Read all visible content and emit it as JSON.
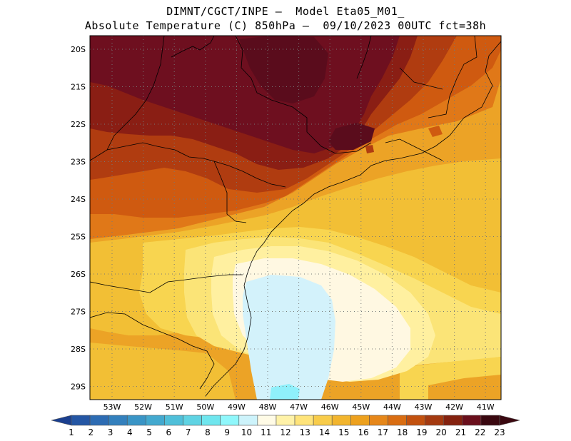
{
  "header": {
    "line1": "DIMNT/CGCT/INPE –  Model Eta05_M01_",
    "line2": "Absolute Temperature (C) 850hPa –  09/10/2023 00UTC fct=38h"
  },
  "axes": {
    "lat_ticks": [
      "20S",
      "21S",
      "22S",
      "23S",
      "24S",
      "25S",
      "26S",
      "27S",
      "28S",
      "29S"
    ],
    "lon_ticks": [
      "53W",
      "52W",
      "51W",
      "50W",
      "49W",
      "48W",
      "47W",
      "46W",
      "45W",
      "44W",
      "43W",
      "42W",
      "41W"
    ]
  },
  "colorbar": {
    "labels": [
      "1",
      "2",
      "3",
      "4",
      "5",
      "6",
      "7",
      "8",
      "9",
      "10",
      "11",
      "12",
      "13",
      "14",
      "15",
      "16",
      "17",
      "18",
      "19",
      "20",
      "21",
      "22",
      "23"
    ],
    "colors": [
      "#1a3f8f",
      "#2456a4",
      "#2d6cb3",
      "#3380bd",
      "#3a95c6",
      "#43a9cf",
      "#4fbfd9",
      "#5fd3e3",
      "#6fe6ee",
      "#8ff7fb",
      "#cdf3fb",
      "#fffbe6",
      "#fff2a8",
      "#ffe47a",
      "#f8cc4a",
      "#f2b52e",
      "#eda11e",
      "#e6871a",
      "#d96d12",
      "#c2510f",
      "#a43a10",
      "#84220f",
      "#6a0f1c",
      "#3a0810"
    ]
  },
  "map_colors": {
    "t23": "#5a0c1c",
    "t22": "#6e0f1f",
    "t21": "#8a1e14",
    "t20": "#b03c10",
    "t19": "#cf5a10",
    "t18": "#e07818",
    "t17": "#eca326",
    "t16": "#f2bf35",
    "t15": "#f8d550",
    "t14": "#fbe477",
    "t13": "#fff0a0",
    "t12": "#fff8e2",
    "t11": "#d3f2fb",
    "t10": "#8ff0fb"
  }
}
